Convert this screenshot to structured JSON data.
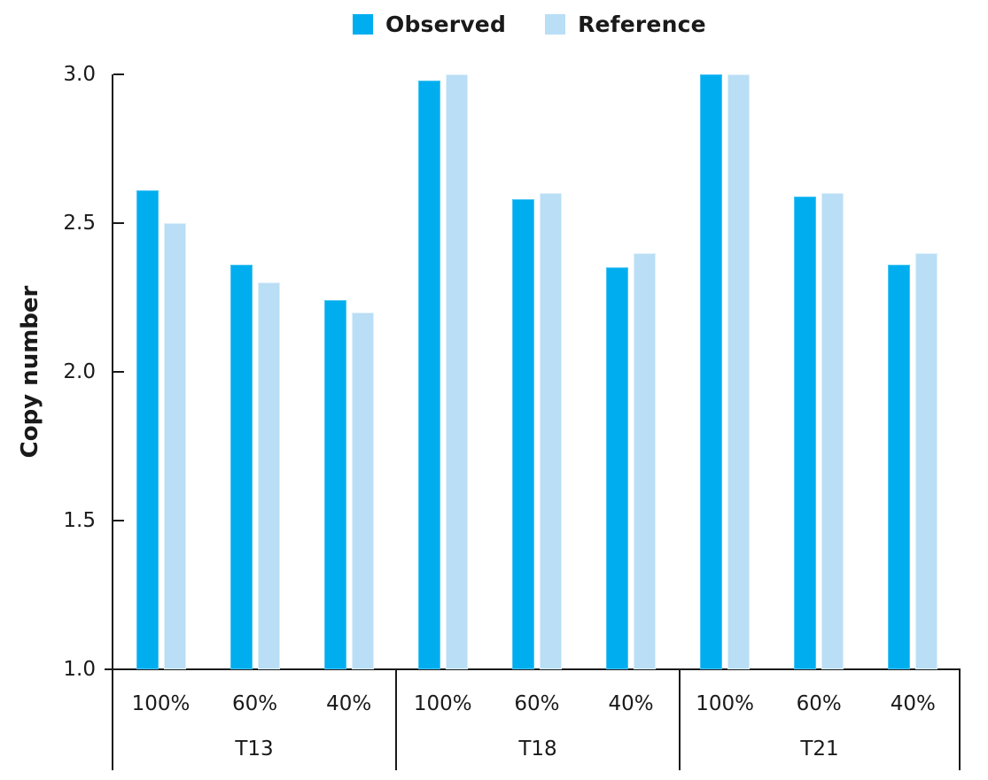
{
  "chart_data": {
    "type": "bar",
    "title": "",
    "ylabel": "Copy number",
    "xlabel": "",
    "ylim": [
      1.0,
      3.0
    ],
    "ytick_values": [
      3.0,
      2.5,
      2.0,
      1.5,
      1.0
    ],
    "ytick_labels": [
      "3.0",
      "2.5",
      "2.0",
      "1.5",
      "1.0"
    ],
    "grid": false,
    "legend_position": "top-center",
    "groups": [
      {
        "label": "T13",
        "categories": [
          "100%",
          "60%",
          "40%"
        ]
      },
      {
        "label": "T18",
        "categories": [
          "100%",
          "60%",
          "40%"
        ]
      },
      {
        "label": "T21",
        "categories": [
          "100%",
          "60%",
          "40%"
        ]
      }
    ],
    "series": [
      {
        "name": "Observed",
        "color": "#00AEEF",
        "values": [
          [
            2.61,
            2.36,
            2.24
          ],
          [
            2.98,
            2.58,
            2.35
          ],
          [
            3.0,
            2.59,
            2.36
          ]
        ]
      },
      {
        "name": "Reference",
        "color": "#B9DEF5",
        "values": [
          [
            2.5,
            2.3,
            2.2
          ],
          [
            3.0,
            2.6,
            2.4
          ],
          [
            3.0,
            2.6,
            2.4
          ]
        ]
      }
    ],
    "axis_color": "#1a1a1a"
  }
}
